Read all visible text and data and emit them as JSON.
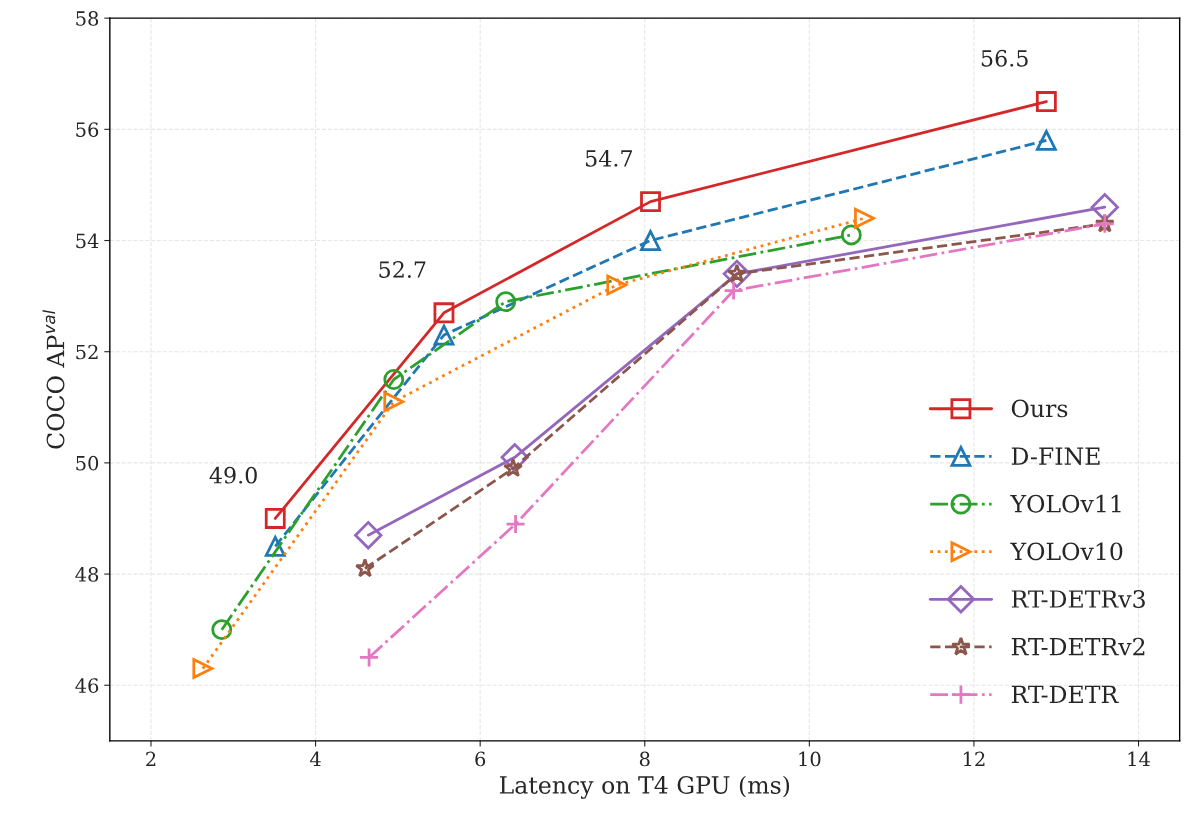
{
  "chart_data": {
    "type": "line",
    "xlabel": "Latency on T4 GPU (ms)",
    "ylabel": "COCO AP$^{val}$",
    "xlim": [
      1.5,
      14.5
    ],
    "ylim": [
      45,
      58
    ],
    "xticks": [
      2,
      4,
      6,
      8,
      10,
      12,
      14
    ],
    "yticks": [
      46,
      48,
      50,
      52,
      54,
      56,
      58
    ],
    "grid": true,
    "legend": "lower right",
    "series": [
      {
        "name": "Ours",
        "color": "#d62728",
        "marker": "square",
        "line_style": "solid",
        "x": [
          3.51,
          5.56,
          8.07,
          12.88
        ],
        "values": [
          49.0,
          52.7,
          54.7,
          56.5
        ]
      },
      {
        "name": "D-FINE",
        "color": "#1f77b4",
        "marker": "triangle",
        "line_style": "dashed",
        "x": [
          3.51,
          5.56,
          8.07,
          12.88
        ],
        "values": [
          48.5,
          52.3,
          54.0,
          55.8
        ]
      },
      {
        "name": "YOLOv11",
        "color": "#2ca02c",
        "marker": "circle",
        "line_style": "dashdot",
        "x": [
          2.86,
          4.95,
          6.31,
          10.51
        ],
        "values": [
          47.0,
          51.5,
          52.9,
          54.1
        ]
      },
      {
        "name": "YOLOv10",
        "color": "#ff7f0e",
        "marker": "triangle_right",
        "line_style": "dotted",
        "x": [
          2.63,
          4.95,
          7.66,
          10.67
        ],
        "values": [
          46.3,
          51.1,
          53.2,
          54.4
        ]
      },
      {
        "name": "RT-DETRv3",
        "color": "#9467bd",
        "marker": "diamond",
        "line_style": "solid",
        "x": [
          4.64,
          6.42,
          9.12,
          13.59
        ],
        "values": [
          48.7,
          50.1,
          53.4,
          54.6
        ]
      },
      {
        "name": "RT-DETRv2",
        "color": "#8c564b",
        "marker": "star",
        "line_style": "dashed",
        "x": [
          4.6,
          6.4,
          9.12,
          13.59
        ],
        "values": [
          48.1,
          49.9,
          53.4,
          54.3
        ]
      },
      {
        "name": "RT-DETR",
        "color": "#e377c2",
        "marker": "plus",
        "line_style": "dashdot",
        "x": [
          4.65,
          6.43,
          9.08,
          13.59
        ],
        "values": [
          46.5,
          48.9,
          53.1,
          54.3
        ]
      }
    ],
    "annotations": [
      {
        "text": "49.0",
        "x": 3.51,
        "y": 49.0
      },
      {
        "text": "52.7",
        "x": 5.56,
        "y": 52.7
      },
      {
        "text": "54.7",
        "x": 8.07,
        "y": 54.7
      },
      {
        "text": "56.5",
        "x": 12.88,
        "y": 56.5
      }
    ]
  }
}
